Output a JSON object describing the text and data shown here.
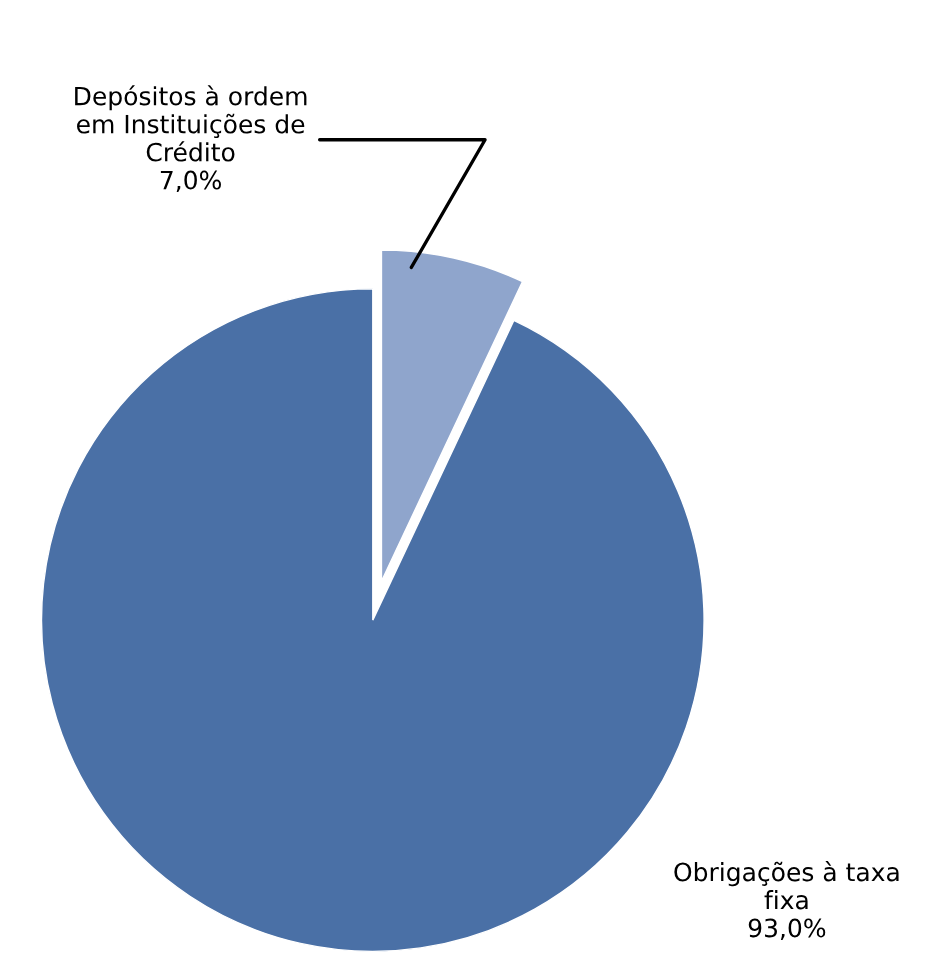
{
  "chart_data": {
    "type": "pie",
    "categories": [
      "Depósitos à ordem\nem Instituições de\nCrédito",
      "Obrigações à taxa\nfixa"
    ],
    "values": [
      7.0,
      93.0
    ],
    "value_labels": [
      "7,0%",
      "93,0%"
    ],
    "colors": [
      "#8fa5cc",
      "#4a70a6"
    ]
  }
}
